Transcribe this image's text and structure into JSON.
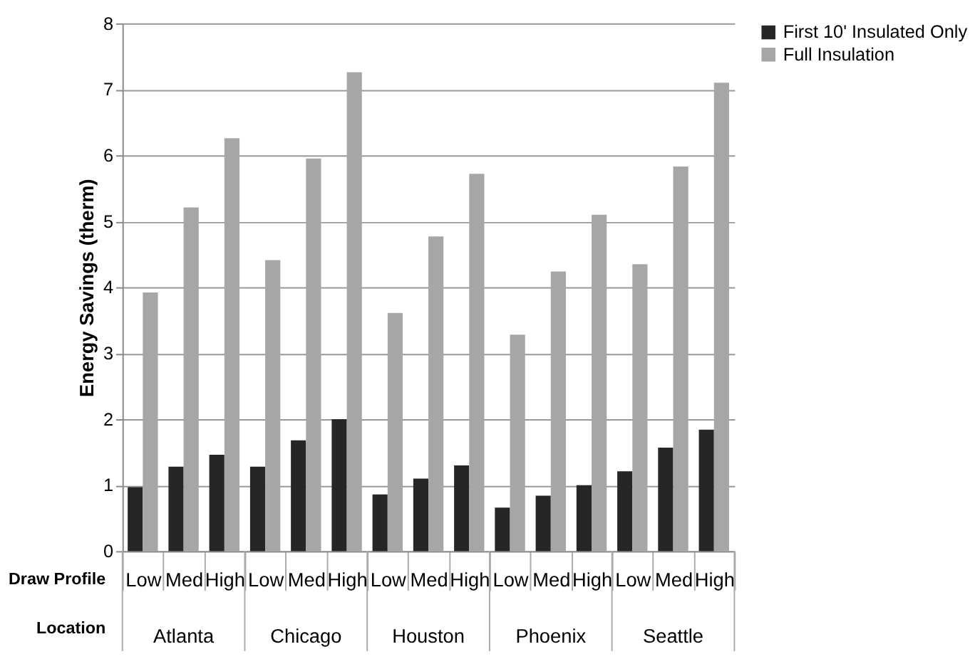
{
  "chart_data": {
    "type": "bar",
    "categories": [
      "Low",
      "Med",
      "High",
      "Low",
      "Med",
      "High",
      "Low",
      "Med",
      "High",
      "Low",
      "Med",
      "High",
      "Low",
      "Med",
      "High"
    ],
    "series": [
      {
        "name": "First 10' Insulated Only",
        "color": "#262626",
        "values": [
          0.97,
          1.28,
          1.46,
          1.28,
          1.68,
          2.0,
          0.86,
          1.1,
          1.3,
          0.66,
          0.84,
          1.0,
          1.21,
          1.57,
          1.84
        ]
      },
      {
        "name": "Full Insulation",
        "color": "#a6a6a6",
        "values": [
          3.92,
          5.21,
          6.26,
          4.41,
          5.95,
          7.26,
          3.61,
          4.77,
          5.72,
          3.28,
          4.24,
          5.1,
          4.35,
          5.83,
          7.1
        ]
      }
    ],
    "ylabel": "Energy Savings (therm)",
    "ylim": [
      0,
      8
    ],
    "yticks": [
      0,
      1,
      2,
      3,
      4,
      5,
      6,
      7,
      8
    ],
    "annotations": [
      "Draw Profile",
      "Location",
      "Atlanta",
      "Chicago",
      "Houston",
      "Phoenix",
      "Seattle"
    ],
    "grid": "y",
    "legend": "right"
  }
}
